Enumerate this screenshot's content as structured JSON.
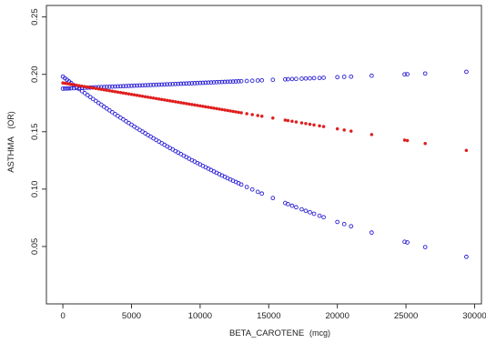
{
  "chart_data": {
    "type": "scatter",
    "xlabel": "BETA_CAROTENE",
    "xlabel_unit": "(mcg)",
    "ylabel": "ASTHMA",
    "ylabel_unit": "(OR)",
    "xlim": [
      -1200,
      30500
    ],
    "ylim": [
      0,
      0.26
    ],
    "x_ticks": [
      0,
      5000,
      10000,
      15000,
      20000,
      25000,
      30000
    ],
    "y_ticks": [
      0.05,
      0.1,
      0.15,
      0.2,
      0.25
    ],
    "grid": false,
    "legend": "none",
    "colors": {
      "blue": "#2a1fd6",
      "red": "#e01e1e",
      "axis": "#333333"
    },
    "x_samples": [
      0,
      150,
      300,
      450,
      600,
      800,
      1000,
      1200,
      1400,
      1600,
      1800,
      2000,
      2200,
      2400,
      2600,
      2800,
      3000,
      3200,
      3400,
      3600,
      3800,
      4000,
      4200,
      4400,
      4600,
      4800,
      5000,
      5200,
      5400,
      5600,
      5800,
      6000,
      6200,
      6400,
      6600,
      6800,
      7000,
      7200,
      7400,
      7600,
      7800,
      8000,
      8200,
      8400,
      8600,
      8800,
      9000,
      9200,
      9400,
      9600,
      9800,
      10000,
      10200,
      10400,
      10600,
      10800,
      11000,
      11200,
      11400,
      11600,
      11800,
      12000,
      12200,
      12400,
      12600,
      12800,
      13000,
      13400,
      13800,
      14200,
      14500,
      15300,
      16200,
      16400,
      16700,
      17000,
      17400,
      17700,
      18000,
      18300,
      18700,
      19000,
      20000,
      20500,
      21000,
      22500,
      24900,
      25100,
      26400,
      29400
    ],
    "series": [
      {
        "color": "blue",
        "marker": "circle",
        "values": [
          0.198,
          0.1966,
          0.1952,
          0.1938,
          0.1924,
          0.1906,
          0.1888,
          0.1871,
          0.1853,
          0.1836,
          0.1819,
          0.1802,
          0.1785,
          0.1768,
          0.1751,
          0.1735,
          0.1718,
          0.1702,
          0.1686,
          0.167,
          0.1654,
          0.1638,
          0.1622,
          0.1607,
          0.1591,
          0.1576,
          0.1561,
          0.1545,
          0.153,
          0.1515,
          0.1501,
          0.1486,
          0.1471,
          0.1457,
          0.1442,
          0.1428,
          0.1414,
          0.14,
          0.1386,
          0.1372,
          0.1358,
          0.1345,
          0.1331,
          0.1318,
          0.1305,
          0.1291,
          0.1278,
          0.1265,
          0.1252,
          0.124,
          0.1227,
          0.1215,
          0.1202,
          0.119,
          0.1178,
          0.1166,
          0.1154,
          0.1142,
          0.113,
          0.1118,
          0.1107,
          0.1095,
          0.1084,
          0.1073,
          0.1062,
          0.1051,
          0.104,
          0.1018,
          0.0997,
          0.0976,
          0.0961,
          0.0922,
          0.0879,
          0.0869,
          0.0855,
          0.0842,
          0.0824,
          0.0811,
          0.0798,
          0.0785,
          0.0768,
          0.0755,
          0.0714,
          0.0695,
          0.0676,
          0.0621,
          0.0541,
          0.0535,
          0.0495,
          0.041
        ]
      },
      {
        "color": "blue",
        "marker": "circle",
        "values": [
          0.1875,
          0.1876,
          0.1876,
          0.1877,
          0.1878,
          0.1879,
          0.188,
          0.1881,
          0.1882,
          0.1883,
          0.1884,
          0.1885,
          0.1886,
          0.1887,
          0.1888,
          0.1889,
          0.189,
          0.1891,
          0.1892,
          0.1893,
          0.1894,
          0.1895,
          0.1896,
          0.1897,
          0.1898,
          0.1899,
          0.19,
          0.1901,
          0.1902,
          0.1903,
          0.1904,
          0.1905,
          0.1906,
          0.1907,
          0.1908,
          0.1909,
          0.191,
          0.1911,
          0.1912,
          0.1913,
          0.1914,
          0.1915,
          0.1916,
          0.1917,
          0.1918,
          0.1919,
          0.192,
          0.1921,
          0.1922,
          0.1923,
          0.1924,
          0.1925,
          0.1926,
          0.1927,
          0.1928,
          0.1929,
          0.193,
          0.1931,
          0.1932,
          0.1933,
          0.1934,
          0.1935,
          0.1936,
          0.1937,
          0.1938,
          0.1939,
          0.194,
          0.1942,
          0.1944,
          0.1946,
          0.1948,
          0.1952,
          0.1956,
          0.1957,
          0.1959,
          0.196,
          0.1962,
          0.1964,
          0.1965,
          0.1967,
          0.1968,
          0.197,
          0.1975,
          0.1978,
          0.198,
          0.1988,
          0.2,
          0.2001,
          0.2007,
          0.2022
        ]
      },
      {
        "color": "red",
        "marker": "dot",
        "values": [
          0.1925,
          0.1922,
          0.1919,
          0.1916,
          0.1913,
          0.1909,
          0.1905,
          0.1901,
          0.1897,
          0.1893,
          0.1889,
          0.1885,
          0.1881,
          0.1877,
          0.1873,
          0.1869,
          0.1865,
          0.1861,
          0.1857,
          0.1853,
          0.1849,
          0.1845,
          0.1841,
          0.1837,
          0.1833,
          0.1829,
          0.1825,
          0.1821,
          0.1817,
          0.1813,
          0.1809,
          0.1805,
          0.1801,
          0.1797,
          0.1793,
          0.1789,
          0.1785,
          0.1781,
          0.1777,
          0.1773,
          0.1769,
          0.1765,
          0.1761,
          0.1757,
          0.1753,
          0.1749,
          0.1745,
          0.1741,
          0.1737,
          0.1733,
          0.1729,
          0.1725,
          0.1721,
          0.1717,
          0.1713,
          0.1709,
          0.1705,
          0.1701,
          0.1697,
          0.1693,
          0.1689,
          0.1685,
          0.1681,
          0.1677,
          0.1673,
          0.1669,
          0.1665,
          0.1657,
          0.1649,
          0.1641,
          0.1635,
          0.1619,
          0.1601,
          0.1597,
          0.1591,
          0.1585,
          0.1577,
          0.1571,
          0.1565,
          0.1559,
          0.1551,
          0.1545,
          0.1525,
          0.1515,
          0.1505,
          0.1475,
          0.1427,
          0.1423,
          0.1397,
          0.1337
        ]
      }
    ]
  }
}
